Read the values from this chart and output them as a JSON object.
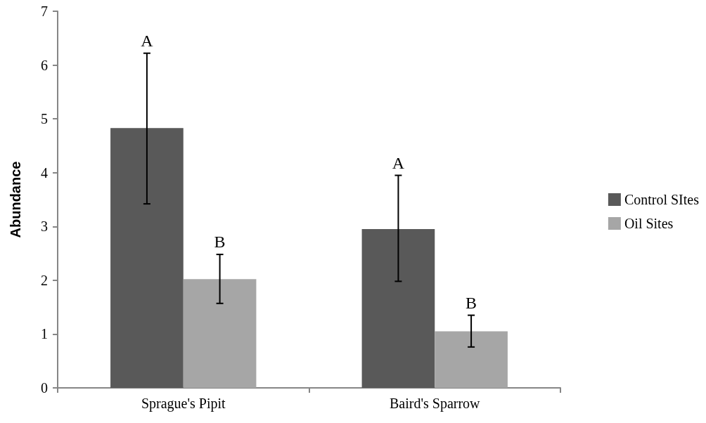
{
  "chart_data": {
    "type": "bar",
    "ylabel": "Abundance",
    "categories": [
      "Sprague's Pipit",
      "Baird's Sparrow"
    ],
    "series": [
      {
        "name": "Control SItes",
        "color": "#595959",
        "values": [
          4.83,
          2.95
        ],
        "errors": [
          [
            3.42,
            6.22
          ],
          [
            1.98,
            3.95
          ]
        ]
      },
      {
        "name": "Oil Sites",
        "color": "#a6a6a6",
        "values": [
          2.02,
          1.05
        ],
        "errors": [
          [
            1.57,
            2.48
          ],
          [
            0.76,
            1.35
          ]
        ]
      }
    ],
    "annotations": [
      "A",
      "B",
      "A",
      "B"
    ],
    "ylim": [
      0,
      7
    ],
    "yticks": [
      0,
      1,
      2,
      3,
      4,
      5,
      6,
      7
    ],
    "grid": false,
    "legend": "right"
  }
}
